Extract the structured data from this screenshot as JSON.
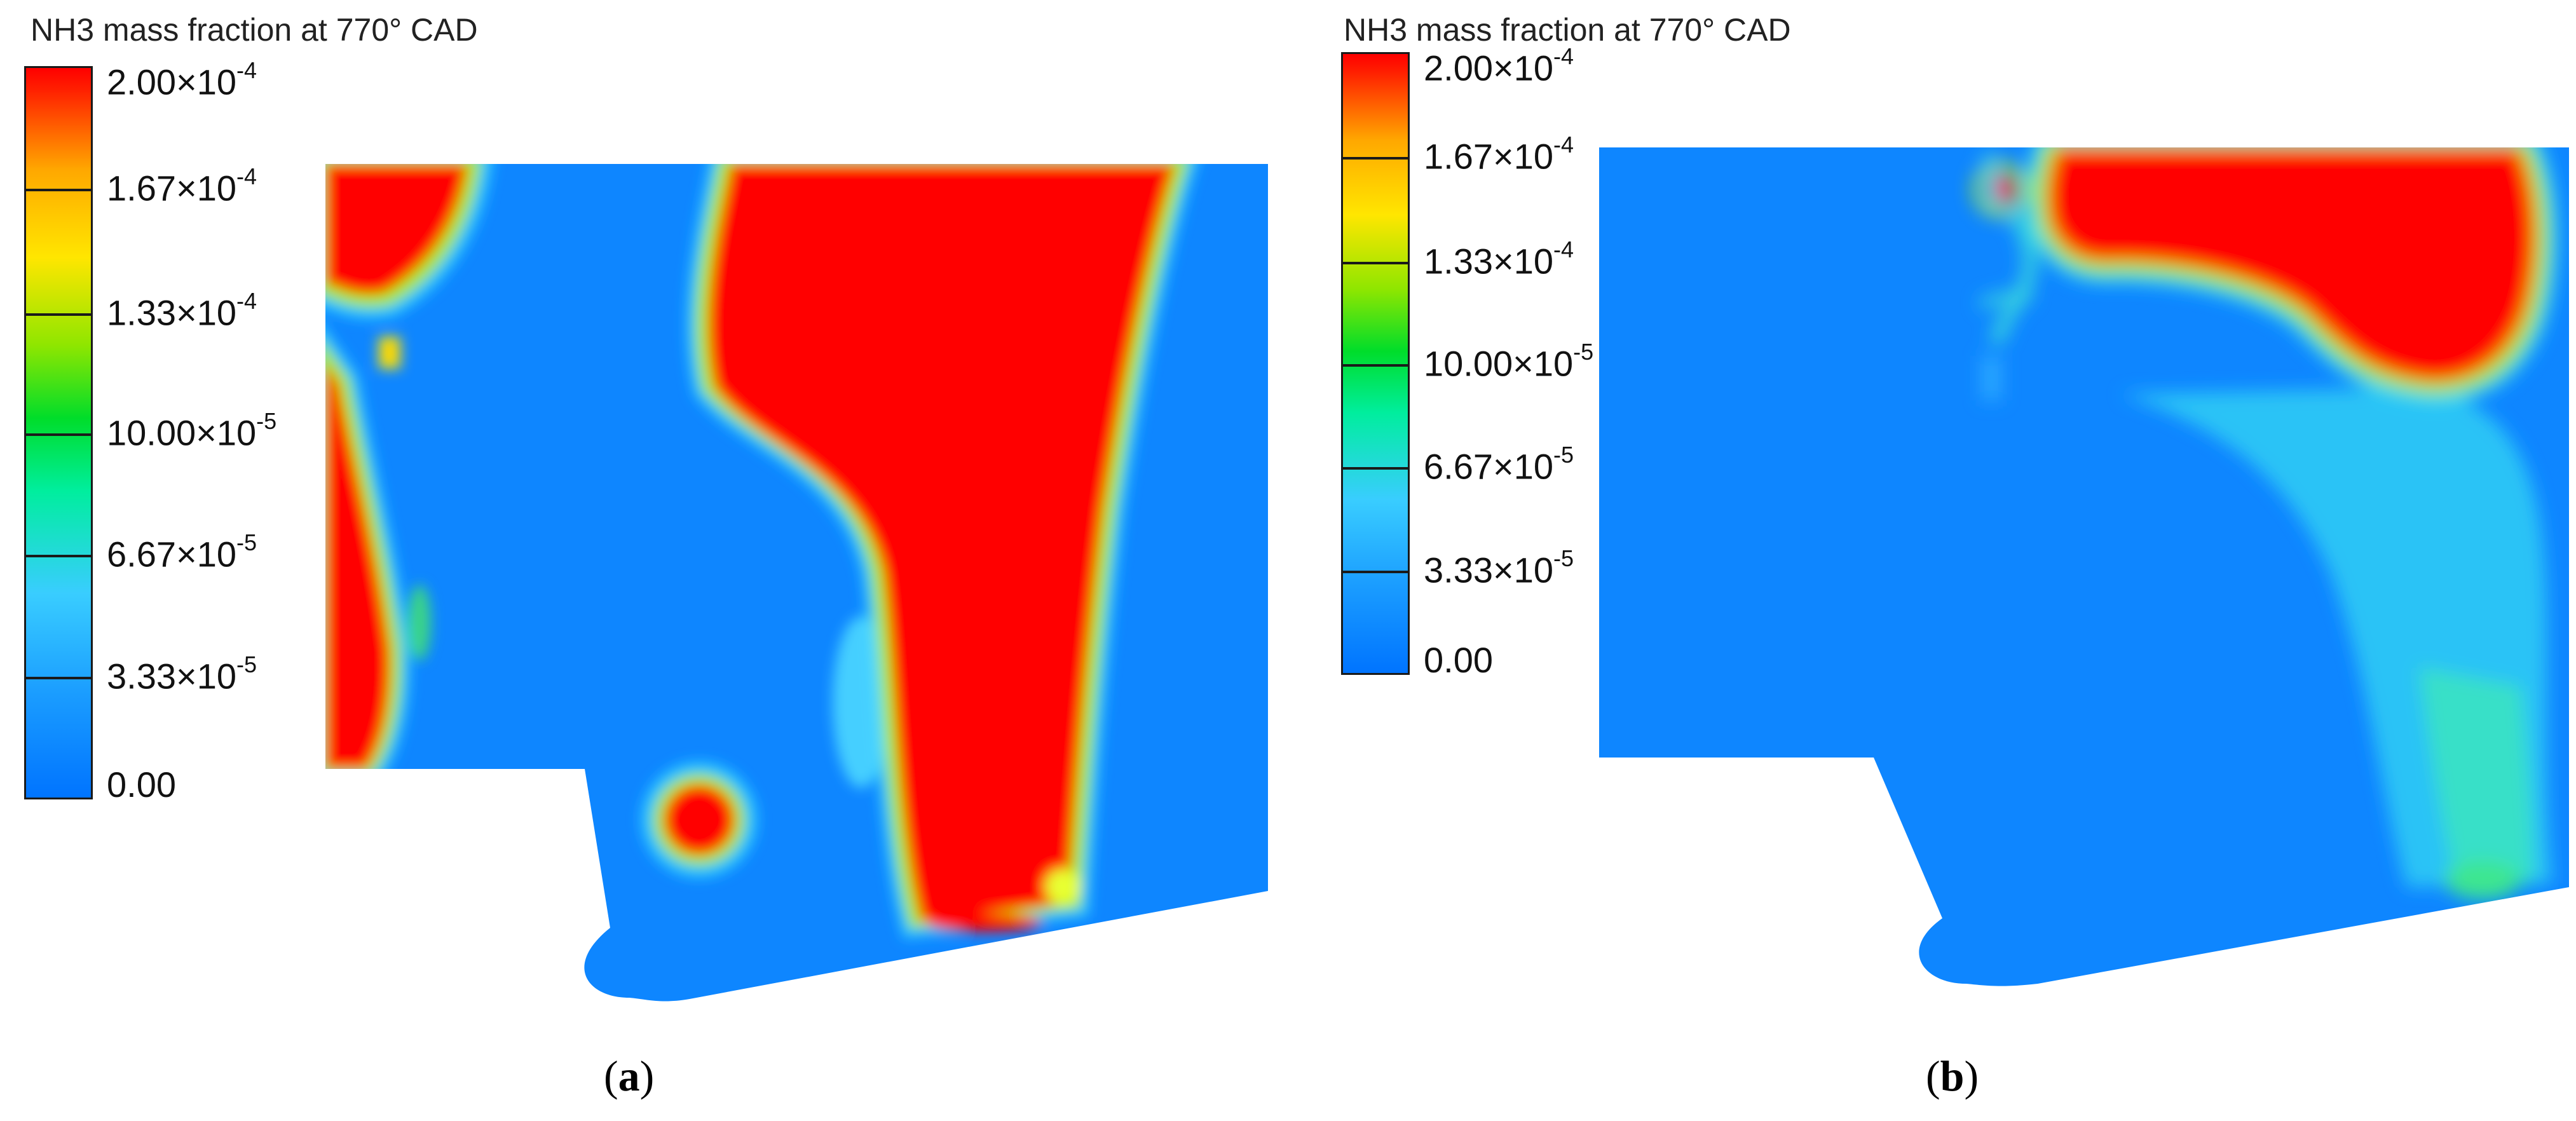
{
  "chart_data": [
    {
      "type": "heatmap",
      "panel": "(a)",
      "title": "NH3 mass fraction at 770° CAD",
      "colorbar_ticks": [
        {
          "mantissa": "2.00×10",
          "exp": "-4",
          "value": 0.0002
        },
        {
          "mantissa": "1.67×10",
          "exp": "-4",
          "value": 0.000167
        },
        {
          "mantissa": "1.33×10",
          "exp": "-4",
          "value": 0.000133
        },
        {
          "mantissa": "10.00×10",
          "exp": "-5",
          "value": 0.0001
        },
        {
          "mantissa": "6.67×10",
          "exp": "-5",
          "value": 6.67e-05
        },
        {
          "mantissa": "3.33×10",
          "exp": "-5",
          "value": 3.33e-05
        },
        {
          "mantissa": "0.00",
          "exp": "",
          "value": 0
        }
      ],
      "colorbar_range": [
        0,
        0.0002
      ],
      "colormap": [
        "#0074ff",
        "#39cdff",
        "#00dd2a",
        "#ffe600",
        "#ff0000"
      ]
    },
    {
      "type": "heatmap",
      "panel": "(b)",
      "title": "NH3 mass fraction at 770° CAD",
      "colorbar_ticks": [
        {
          "mantissa": "2.00×10",
          "exp": "-4",
          "value": 0.0002
        },
        {
          "mantissa": "1.67×10",
          "exp": "-4",
          "value": 0.000167
        },
        {
          "mantissa": "1.33×10",
          "exp": "-4",
          "value": 0.000133
        },
        {
          "mantissa": "10.00×10",
          "exp": "-5",
          "value": 0.0001
        },
        {
          "mantissa": "6.67×10",
          "exp": "-5",
          "value": 6.67e-05
        },
        {
          "mantissa": "3.33×10",
          "exp": "-5",
          "value": 3.33e-05
        },
        {
          "mantissa": "0.00",
          "exp": "",
          "value": 0
        }
      ],
      "colorbar_range": [
        0,
        0.0002
      ],
      "colormap": [
        "#0074ff",
        "#39cdff",
        "#00dd2a",
        "#ffe600",
        "#ff0000"
      ]
    }
  ],
  "labels": {
    "a_paren_open": "(",
    "a_letter": "a",
    "a_paren_close": ")",
    "b_paren_open": "(",
    "b_letter": "b",
    "b_paren_close": ")"
  }
}
